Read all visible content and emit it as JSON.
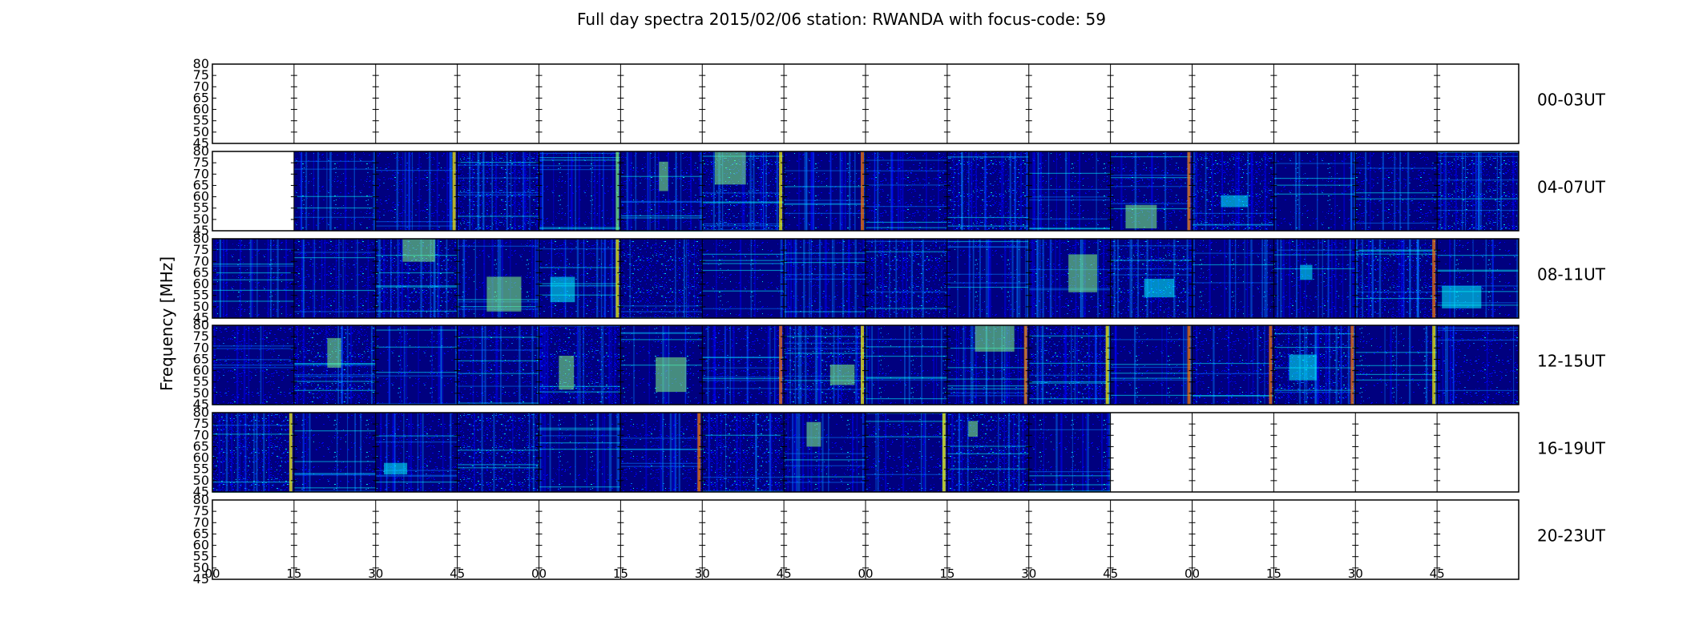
{
  "chart_data": {
    "type": "heatmap",
    "title": "Full day spectra 2015/02/06 station: RWANDA with focus-code: 59",
    "ylabel": "Frequency [MHz]",
    "ylim": [
      45,
      80
    ],
    "y_ticks": [
      45,
      50,
      55,
      60,
      65,
      70,
      75,
      80
    ],
    "x_ticks": [
      "00",
      "15",
      "30",
      "45",
      "00",
      "15",
      "30",
      "45",
      "00",
      "15",
      "30",
      "45",
      "00",
      "15",
      "30",
      "45"
    ],
    "rows": [
      {
        "label": "00-03UT",
        "data_from": null,
        "data_to": null
      },
      {
        "label": "04-07UT",
        "data_from": 1,
        "data_to": 16
      },
      {
        "label": "08-11UT",
        "data_from": 0,
        "data_to": 16
      },
      {
        "label": "12-15UT",
        "data_from": 0,
        "data_to": 16
      },
      {
        "label": "16-19UT",
        "data_from": 0,
        "data_to": 11
      },
      {
        "label": "20-23UT",
        "data_from": null,
        "data_to": null
      }
    ],
    "colormap": [
      "#00007f",
      "#0000ff",
      "#007fff",
      "#00ffff",
      "#7fff7f",
      "#ffff00",
      "#ff7f00",
      "#ff0000"
    ],
    "empty_panel_color": "#ffffff"
  }
}
